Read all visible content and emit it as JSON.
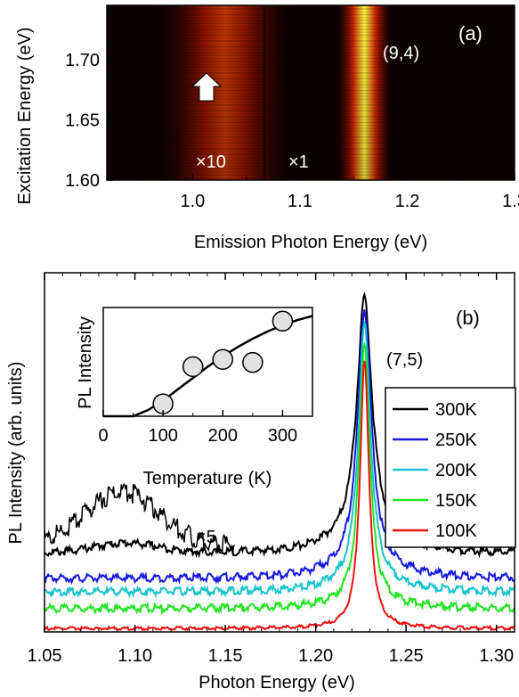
{
  "chart_data": [
    {
      "panel": "(a)",
      "type": "heatmap",
      "xlabel": "Emission Photon Energy (eV)",
      "ylabel": "Excitation Energy (eV)",
      "xlim": [
        0.92,
        1.3
      ],
      "ylim": [
        1.6,
        1.745
      ],
      "xticks": [
        1.0,
        1.1,
        1.2,
        1.3
      ],
      "xtick_labels": [
        "1.0",
        "1.1",
        "1.2",
        "1.3"
      ],
      "yticks": [
        1.6,
        1.65,
        1.7
      ],
      "ytick_labels": [
        "1.60",
        "1.65",
        "1.70"
      ],
      "colormap": "black-red-yellow",
      "scale_split_x": 1.075,
      "scale_labels": [
        {
          "text": "×10",
          "x": 1.03,
          "y": 1.615
        },
        {
          "text": "×1",
          "x": 1.11,
          "y": 1.615
        }
      ],
      "annotations": [
        {
          "text": "(9,4)",
          "x": 1.215,
          "y": 1.705
        }
      ],
      "arrow": {
        "x": 1.027,
        "y": 1.675,
        "direction": "up"
      },
      "features": [
        {
          "center_x": 1.16,
          "width": 0.012,
          "peak_y": 1.74,
          "strength": 1.0
        },
        {
          "center_x": 1.03,
          "width": 0.03,
          "peak_y": 1.74,
          "strength": 0.75
        }
      ]
    },
    {
      "panel": "(b)",
      "type": "line",
      "xlabel": "Photon Energy (eV)",
      "ylabel": "PL Intensity (arb. units)",
      "xlim": [
        1.05,
        1.31
      ],
      "xticks": [
        1.05,
        1.1,
        1.15,
        1.2,
        1.25,
        1.3
      ],
      "xtick_labels": [
        "1.05",
        "1.10",
        "1.15",
        "1.20",
        "1.25",
        "1.30"
      ],
      "annotation": "(7,5)",
      "magnify_label": "×5",
      "peak_x": 1.227,
      "legend_position": "right",
      "series": [
        {
          "name": "300K",
          "color": "#000000",
          "baseline": 0.235,
          "peak": 1.0,
          "width": 0.005,
          "tail": 0.06,
          "bump": 0.03
        },
        {
          "name": "250K",
          "color": "#1a1adf",
          "baseline": 0.16,
          "peak": 0.965,
          "width": 0.0045,
          "tail": 0.045,
          "bump": 0.0
        },
        {
          "name": "200K",
          "color": "#17c4cc",
          "baseline": 0.12,
          "peak": 0.92,
          "width": 0.004,
          "tail": 0.03,
          "bump": 0.0
        },
        {
          "name": "150K",
          "color": "#22e522",
          "baseline": 0.07,
          "peak": 0.87,
          "width": 0.0035,
          "tail": 0.02,
          "bump": 0.0
        },
        {
          "name": "100K",
          "color": "#ee1111",
          "baseline": 0.01,
          "peak": 0.81,
          "width": 0.003,
          "tail": 0.0,
          "bump": 0.0
        }
      ],
      "magnified_series": {
        "color": "#000000",
        "x_range": [
          1.05,
          1.155
        ],
        "baseline": 0.26,
        "peak_x": 1.093,
        "height": 0.16
      }
    },
    {
      "panel": "(b) inset",
      "type": "scatter",
      "xlabel": "Temperature (K)",
      "ylabel": "PL Intensity",
      "xlim": [
        0,
        350
      ],
      "xticks": [
        0,
        100,
        200,
        300
      ],
      "xtick_labels": [
        "0",
        "100",
        "200",
        "300"
      ],
      "ylim": [
        0,
        1
      ],
      "points": [
        {
          "x": 100,
          "y": 0.12
        },
        {
          "x": 150,
          "y": 0.48
        },
        {
          "x": 200,
          "y": 0.55
        },
        {
          "x": 250,
          "y": 0.52
        },
        {
          "x": 300,
          "y": 0.92
        }
      ],
      "fit": [
        {
          "x": 0,
          "y": 0.0
        },
        {
          "x": 50,
          "y": 0.0
        },
        {
          "x": 75,
          "y": 0.06
        },
        {
          "x": 100,
          "y": 0.15
        },
        {
          "x": 125,
          "y": 0.26
        },
        {
          "x": 150,
          "y": 0.37
        },
        {
          "x": 175,
          "y": 0.48
        },
        {
          "x": 200,
          "y": 0.58
        },
        {
          "x": 225,
          "y": 0.67
        },
        {
          "x": 250,
          "y": 0.75
        },
        {
          "x": 275,
          "y": 0.82
        },
        {
          "x": 300,
          "y": 0.88
        },
        {
          "x": 325,
          "y": 0.93
        },
        {
          "x": 350,
          "y": 0.97
        }
      ]
    }
  ]
}
